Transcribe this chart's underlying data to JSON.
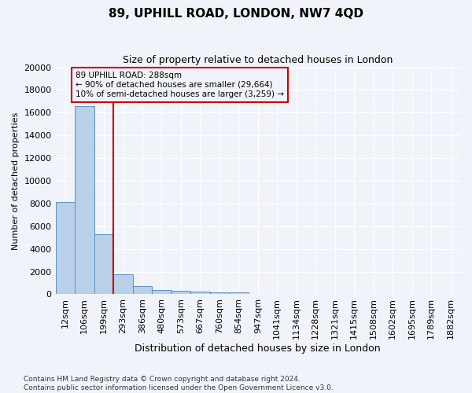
{
  "title": "89, UPHILL ROAD, LONDON, NW7 4QD",
  "subtitle": "Size of property relative to detached houses in London",
  "xlabel": "Distribution of detached houses by size in London",
  "ylabel": "Number of detached properties",
  "bar_color": "#b8d0e8",
  "bar_edge_color": "#5a8fc0",
  "bar_values": [
    8100,
    16600,
    5300,
    1750,
    700,
    380,
    300,
    230,
    200,
    180,
    0,
    0,
    0,
    0,
    0,
    0,
    0,
    0,
    0,
    0,
    0
  ],
  "categories": [
    "12sqm",
    "106sqm",
    "199sqm",
    "293sqm",
    "386sqm",
    "480sqm",
    "573sqm",
    "667sqm",
    "760sqm",
    "854sqm",
    "947sqm",
    "1041sqm",
    "1134sqm",
    "1228sqm",
    "1321sqm",
    "1415sqm",
    "1508sqm",
    "1602sqm",
    "1695sqm",
    "1789sqm",
    "1882sqm"
  ],
  "ylim": [
    0,
    20000
  ],
  "yticks": [
    0,
    2000,
    4000,
    6000,
    8000,
    10000,
    12000,
    14000,
    16000,
    18000,
    20000
  ],
  "vline_x": 2.5,
  "vline_color": "#cc0000",
  "annotation_text": "89 UPHILL ROAD: 288sqm\n← 90% of detached houses are smaller (29,664)\n10% of semi-detached houses are larger (3,259) →",
  "annotation_box_color": "#cc0000",
  "footnote": "Contains HM Land Registry data © Crown copyright and database right 2024.\nContains public sector information licensed under the Open Government Licence v3.0.",
  "bg_color": "#f0f4fa",
  "grid_color": "#ffffff"
}
